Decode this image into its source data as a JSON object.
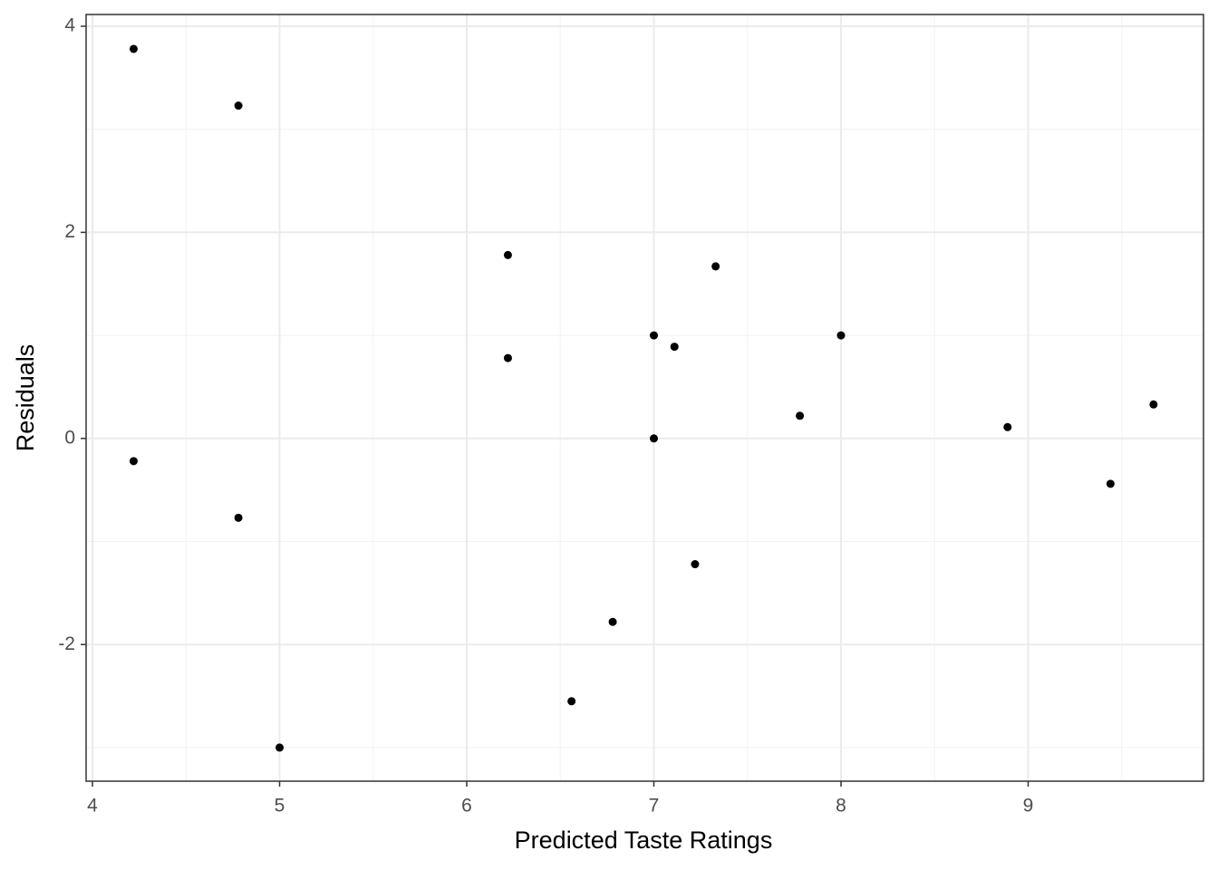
{
  "chart_data": {
    "type": "scatter",
    "x_label": "Predicted Taste Ratings",
    "y_label": "Residuals",
    "x": [
      4.22,
      4.78,
      4.22,
      4.78,
      5.0,
      6.22,
      6.22,
      6.56,
      6.78,
      7.0,
      7.0,
      7.11,
      7.22,
      7.33,
      7.78,
      8.0,
      8.89,
      9.44,
      9.67
    ],
    "values": [
      3.78,
      3.23,
      -0.22,
      -0.77,
      -3.0,
      1.78,
      0.78,
      -2.55,
      -1.78,
      1.0,
      0.0,
      0.89,
      -1.22,
      1.67,
      0.22,
      1.0,
      0.11,
      -0.44,
      0.33
    ],
    "color": "#000000",
    "xlim": [
      3.966,
      9.937
    ],
    "ylim": [
      -3.326,
      4.114
    ],
    "xticks": [
      4,
      5,
      6,
      7,
      8,
      9
    ],
    "yticks": [
      -2,
      0,
      2,
      4
    ],
    "grid": true
  }
}
